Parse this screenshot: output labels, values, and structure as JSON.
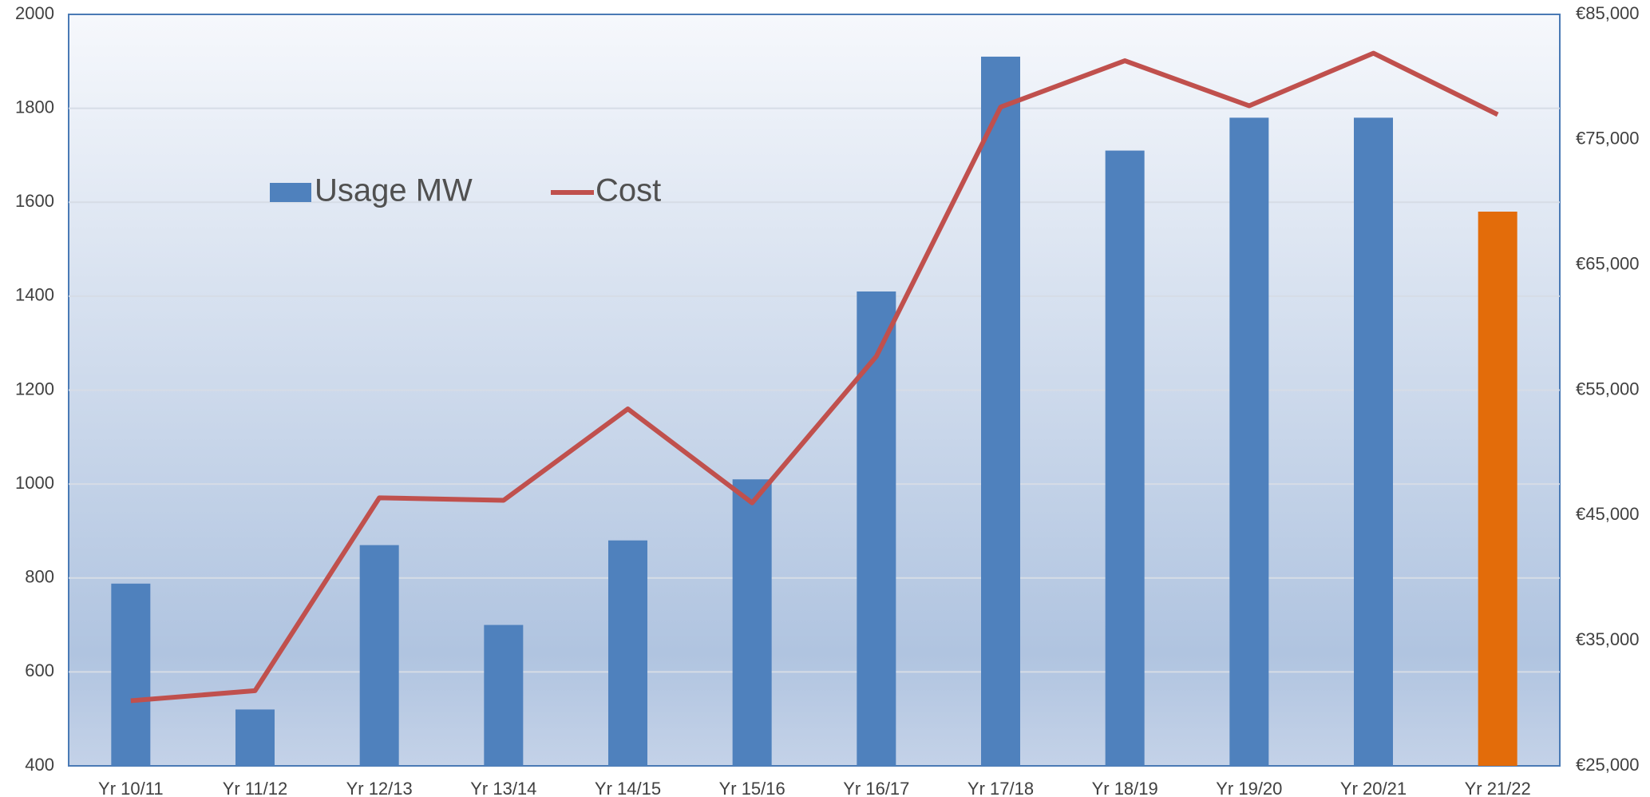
{
  "chart_data": {
    "type": "bar_line",
    "categories": [
      "Yr 10/11",
      "Yr 11/12",
      "Yr 12/13",
      "Yr 13/14",
      "Yr 14/15",
      "Yr 15/16",
      "Yr 16/17",
      "Yr 17/18",
      "Yr 18/19",
      "Yr 19/20",
      "Yr 20/21",
      "Yr 21/22"
    ],
    "series": [
      {
        "name": "Usage MW",
        "type": "bar",
        "color": "#4f81bd",
        "colors": [
          "#4f81bd",
          "#4f81bd",
          "#4f81bd",
          "#4f81bd",
          "#4f81bd",
          "#4f81bd",
          "#4f81bd",
          "#4f81bd",
          "#4f81bd",
          "#4f81bd",
          "#4f81bd",
          "#e36c0a"
        ],
        "values": [
          788,
          520,
          870,
          700,
          880,
          1010,
          1410,
          1910,
          1710,
          1780,
          1780,
          1580
        ]
      },
      {
        "name": "Cost",
        "type": "line",
        "color": "#c0504d",
        "axis": "y2",
        "values": [
          30200,
          31000,
          46400,
          46200,
          53500,
          46000,
          57700,
          77600,
          81300,
          77700,
          81900,
          77000
        ]
      }
    ],
    "ylim": [
      400,
      2000
    ],
    "yticks": [
      400,
      600,
      800,
      1000,
      1200,
      1400,
      1600,
      1800,
      2000
    ],
    "y2lim": [
      25000,
      85000
    ],
    "y2ticks": [
      {
        "value": 25000,
        "label": "€25,000"
      },
      {
        "value": 35000,
        "label": "€35,000"
      },
      {
        "value": 45000,
        "label": "€45,000"
      },
      {
        "value": 55000,
        "label": "€55,000"
      },
      {
        "value": 65000,
        "label": "€65,000"
      },
      {
        "value": 75000,
        "label": "€75,000"
      },
      {
        "value": 85000,
        "label": "€85,000"
      }
    ],
    "grid": true
  }
}
